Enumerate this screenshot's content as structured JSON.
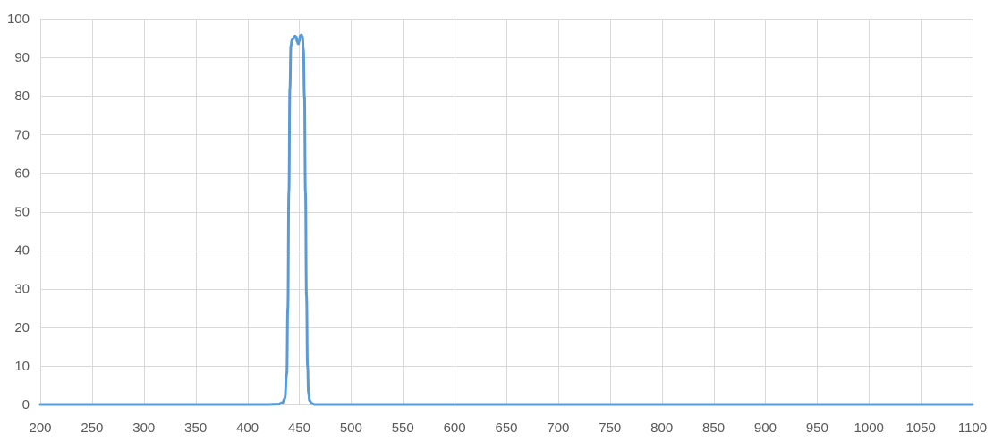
{
  "chart_data": {
    "type": "line",
    "title": "",
    "xlabel": "",
    "ylabel": "",
    "xlim": [
      200,
      1100
    ],
    "ylim": [
      0,
      100
    ],
    "x_ticks": [
      200,
      250,
      300,
      350,
      400,
      450,
      500,
      550,
      600,
      650,
      700,
      750,
      800,
      850,
      900,
      950,
      1000,
      1050,
      1100
    ],
    "y_ticks": [
      0,
      10,
      20,
      30,
      40,
      50,
      60,
      70,
      80,
      90,
      100
    ],
    "grid": true,
    "legend": "none",
    "colors": {
      "series": "#5b9bd5",
      "grid": "#d9d9d9",
      "tick_text": "#595959"
    },
    "series": [
      {
        "points": [
          [
            200,
            0
          ],
          [
            300,
            0
          ],
          [
            400,
            0
          ],
          [
            420,
            0
          ],
          [
            430,
            0.1
          ],
          [
            434,
            0.5
          ],
          [
            436,
            1.5
          ],
          [
            438,
            8
          ],
          [
            439,
            25
          ],
          [
            440,
            55
          ],
          [
            441,
            82
          ],
          [
            442,
            93
          ],
          [
            443,
            94.5
          ],
          [
            444,
            94.8
          ],
          [
            446,
            95.5
          ],
          [
            447,
            95.3
          ],
          [
            448,
            94.2
          ],
          [
            449,
            93.5
          ],
          [
            450,
            94.3
          ],
          [
            451,
            95.6
          ],
          [
            452,
            95.8
          ],
          [
            453,
            95.4
          ],
          [
            454,
            92
          ],
          [
            455,
            80
          ],
          [
            456,
            55
          ],
          [
            457,
            28
          ],
          [
            458,
            10
          ],
          [
            459,
            3
          ],
          [
            460,
            1
          ],
          [
            462,
            0.3
          ],
          [
            465,
            0
          ],
          [
            500,
            0
          ],
          [
            600,
            0
          ],
          [
            700,
            0
          ],
          [
            800,
            0
          ],
          [
            900,
            0
          ],
          [
            1000,
            0
          ],
          [
            1100,
            0
          ]
        ]
      }
    ]
  }
}
